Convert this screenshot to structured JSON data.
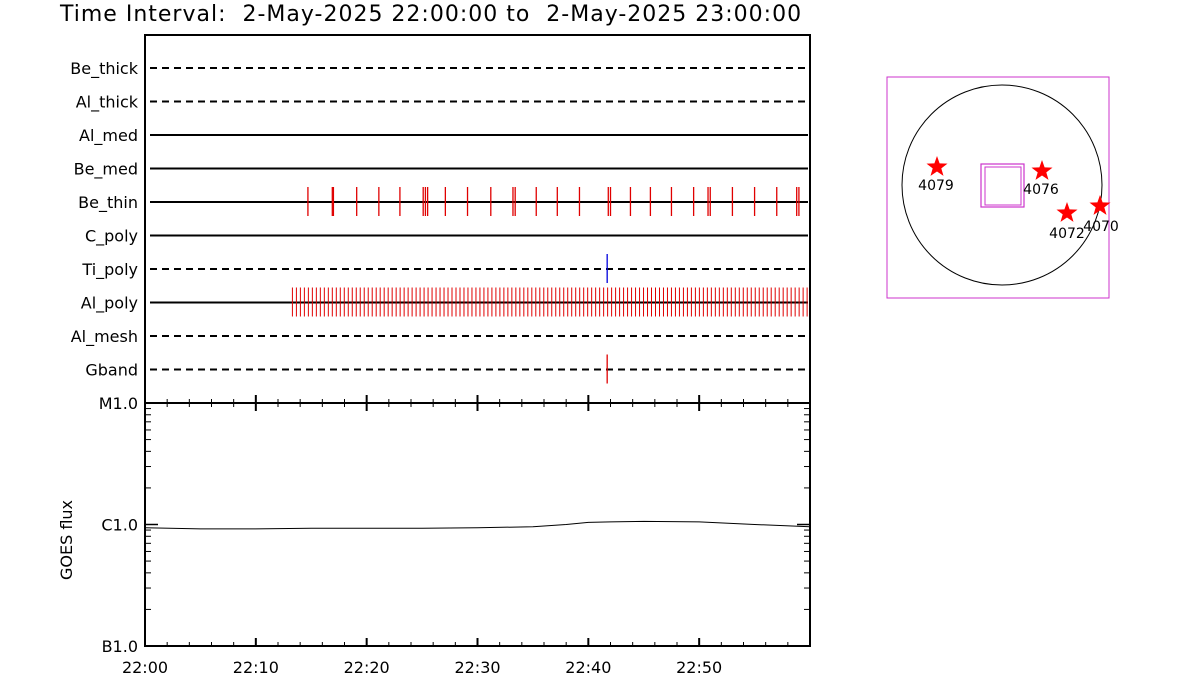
{
  "title": "Time Interval:  2-May-2025 22:00:00 to  2-May-2025 23:00:00",
  "colors": {
    "event": "#e00000",
    "blue": "#0000dd",
    "box": "#cc33cc",
    "star": "#ff0000"
  },
  "chart_data": [
    {
      "type": "scatter",
      "name": "attenuator-timeline",
      "xrange_minutes": [
        0,
        60
      ],
      "rows": [
        {
          "label": "Be_thick",
          "style": "dashed",
          "events": []
        },
        {
          "label": "Al_thick",
          "style": "dashed",
          "events": []
        },
        {
          "label": "Al_med",
          "style": "solid",
          "events": []
        },
        {
          "label": "Be_med",
          "style": "solid",
          "events": []
        },
        {
          "label": "Be_thin",
          "style": "solid",
          "events": [
            14.7,
            16.9,
            17.0,
            19.1,
            21.1,
            23.0,
            25.1,
            25.3,
            25.5,
            27.1,
            29.1,
            31.2,
            33.2,
            33.4,
            35.3,
            37.2,
            39.2,
            41.8,
            42.0,
            43.8,
            45.6,
            47.5,
            49.5,
            50.8,
            51.0,
            53.0,
            55.0,
            57.0,
            58.8,
            59.0
          ]
        },
        {
          "label": "C_poly",
          "style": "solid",
          "events": []
        },
        {
          "label": "Ti_poly",
          "style": "dashed",
          "events": [
            41.7
          ],
          "event_color": "blue"
        },
        {
          "label": "Al_poly",
          "style": "solid",
          "dense_range": [
            13.3,
            60
          ],
          "events": []
        },
        {
          "label": "Al_mesh",
          "style": "dashed",
          "events": []
        },
        {
          "label": "Gband",
          "style": "dashed",
          "events": [
            41.7
          ]
        }
      ]
    },
    {
      "type": "line",
      "name": "goes-flux",
      "ylabel": "GOES flux",
      "ylog": true,
      "ylim": [
        1e-07,
        1e-05
      ],
      "yticklabels": [
        {
          "value": 1e-05,
          "label": "M1.0"
        },
        {
          "value": 1e-06,
          "label": "C1.0"
        },
        {
          "value": 1e-07,
          "label": "B1.0"
        }
      ],
      "xticks_minutes": [
        0,
        10,
        20,
        30,
        40,
        50
      ],
      "xticklabels": [
        "22:00",
        "22:10",
        "22:20",
        "22:30",
        "22:40",
        "22:50"
      ],
      "x": [
        0,
        5,
        10,
        15,
        20,
        25,
        30,
        35,
        38,
        40,
        42,
        45,
        50,
        55,
        60
      ],
      "y": [
        9.4e-07,
        9.2e-07,
        9.2e-07,
        9.3e-07,
        9.3e-07,
        9.3e-07,
        9.4e-07,
        9.6e-07,
        1e-06,
        1.04e-06,
        1.05e-06,
        1.06e-06,
        1.05e-06,
        1e-06,
        9.6e-07
      ]
    },
    {
      "type": "scatter",
      "name": "solar-disk-map",
      "regions": [
        "4079",
        "4076",
        "4072",
        "4070"
      ]
    }
  ]
}
